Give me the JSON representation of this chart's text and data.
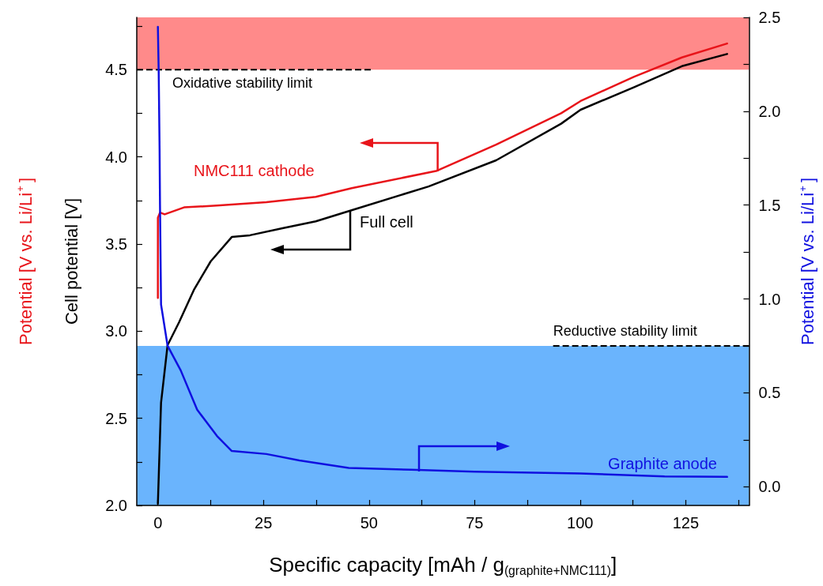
{
  "chart_data": {
    "type": "line",
    "xlabel": "Specific capacity [mAh / g$_{(graphite+NMC111)}$]",
    "ylabel": "Cell potential [V]",
    "y2label": "Potential [V vs. Li/Li$^{+}$]",
    "annotations": [
      "Potential [V vs. Li/Li$^{+}$]"
    ],
    "xlim": [
      -5,
      140
    ],
    "xticks": [
      0,
      {
        "value": 12.5,
        "label": null
      },
      25,
      {
        "value": 37.5,
        "label": null
      },
      50,
      {
        "value": 62.5,
        "label": null
      },
      75,
      {
        "value": 87.5,
        "label": null
      },
      100,
      {
        "value": 112.5,
        "label": null
      },
      125,
      {
        "value": 137.5,
        "label": null
      }
    ],
    "ylim": [
      2.0,
      4.8
    ],
    "yticks": [
      {
        "value": 2.0,
        "label": "2.0"
      },
      {
        "value": 2.25,
        "label": null
      },
      {
        "value": 2.5,
        "label": "2.5"
      },
      {
        "value": 2.75,
        "label": null
      },
      {
        "value": 3.0,
        "label": "3.0"
      },
      {
        "value": 3.25,
        "label": null
      },
      {
        "value": 3.5,
        "label": "3.5"
      },
      {
        "value": 3.75,
        "label": null
      },
      {
        "value": 4.0,
        "label": "4.0"
      },
      {
        "value": 4.25,
        "label": null
      },
      {
        "value": 4.5,
        "label": "4.5"
      },
      {
        "value": 4.75,
        "label": null
      }
    ],
    "y2lim": [
      -0.1,
      2.5
    ],
    "y2ticks": [
      {
        "value": 0.0,
        "label": "0.0"
      },
      {
        "value": 0.25,
        "label": null
      },
      {
        "value": 0.5,
        "label": "0.5"
      },
      {
        "value": 0.75,
        "label": null
      },
      {
        "value": 1.0,
        "label": "1.0"
      },
      {
        "value": 1.25,
        "label": null
      },
      {
        "value": 1.5,
        "label": "1.5"
      },
      {
        "value": 1.75,
        "label": null
      },
      {
        "value": 2.0,
        "label": "2.0"
      },
      {
        "value": 2.25,
        "label": null
      },
      {
        "value": 2.5,
        "label": "2.5"
      }
    ],
    "grid": false,
    "legend": false,
    "marker": "none",
    "line_style": "solid",
    "bands": [
      {
        "axis": "y",
        "from": 4.5,
        "to": 4.8,
        "color": "#ff8a8a"
      },
      {
        "axis": "y2",
        "from": -0.1,
        "to": 0.75,
        "color": "#6ab4fd"
      }
    ],
    "ref_lines": [
      {
        "axis": "y",
        "value": 4.5,
        "label": "Oxidative stability limit",
        "line_style": "dashed",
        "color": "#000000"
      },
      {
        "axis": "y2",
        "value": 0.75,
        "label": "Reductive stability limit",
        "line_style": "dashed",
        "color": "#000000"
      }
    ],
    "series": [
      {
        "name": "NMC111 cathode",
        "color": "#e8141a",
        "x": [
          0,
          0,
          0.5,
          1.6,
          6.2,
          14,
          25.7,
          37.4,
          45.9,
          66.1,
          80.1,
          95.5,
          100.1,
          112.8,
          124.1,
          134.8
        ],
        "values": [
          3.19,
          3.65,
          3.68,
          3.67,
          3.71,
          3.72,
          3.74,
          3.77,
          3.82,
          3.92,
          4.07,
          4.25,
          4.32,
          4.46,
          4.57,
          4.65
        ]
      },
      {
        "name": "Full cell",
        "color": "#000000",
        "x": [
          0,
          0.75,
          2.3,
          5.0,
          8.6,
          12.5,
          17.5,
          21.8,
          29.5,
          37.4,
          45.4,
          64.1,
          80.1,
          95.5,
          100.1,
          112.8,
          124.1,
          134.8
        ],
        "values": [
          2.01,
          2.59,
          2.92,
          3.05,
          3.24,
          3.4,
          3.54,
          3.55,
          3.59,
          3.63,
          3.69,
          3.83,
          3.98,
          4.19,
          4.27,
          4.4,
          4.52,
          4.59
        ]
      },
      {
        "name": "Graphite anode",
        "color": "#1010e0",
        "axis": "y2",
        "x": [
          0,
          0.2,
          0.4,
          0.5,
          0.75,
          2.3,
          5.4,
          9.3,
          14,
          17.5,
          25.7,
          33.5,
          45.2,
          60,
          75,
          100,
          120,
          134.8
        ],
        "values": [
          2.45,
          2.2,
          1.8,
          1.5,
          0.97,
          0.75,
          0.62,
          0.41,
          0.27,
          0.19,
          0.174,
          0.14,
          0.1,
          0.09,
          0.08,
          0.07,
          0.055,
          0.052
        ]
      }
    ]
  }
}
